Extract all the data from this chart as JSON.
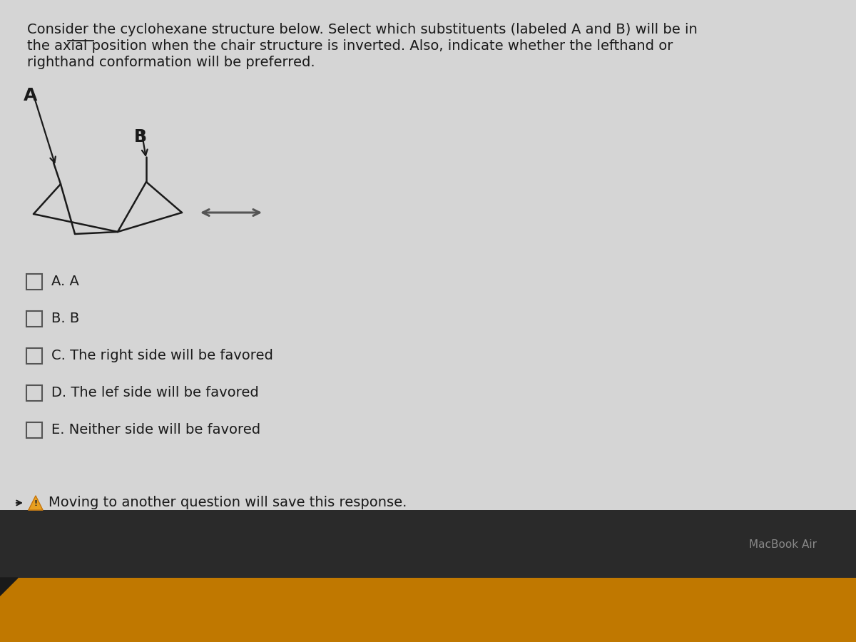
{
  "bg_color_content": "#d5d5d5",
  "bg_color_bottom_bar": "#2a2a2a",
  "bg_color_laptop_base": "#c07800",
  "question_text_line1": "Consider the cyclohexane structure below. Select which substituents (labeled A and B) will be in",
  "question_text_line2": "the axial position when the chair structure is inverted. Also, indicate whether the lefthand or",
  "question_text_line3": "righthand conformation will be preferred.",
  "question_fontsize": 14,
  "label_A": "A",
  "label_B": "B",
  "options": [
    "A. A",
    "B. B",
    "C. The right side will be favored",
    "D. The lef side will be favored",
    "E. Neither side will be favored"
  ],
  "warning_text": "Moving to another question will save this response.",
  "macbook_text": "MacBook Air",
  "arrow_color": "#555555",
  "chair_color": "#1a1a1a",
  "text_color": "#1a1a1a",
  "checkbox_color": "#555555"
}
